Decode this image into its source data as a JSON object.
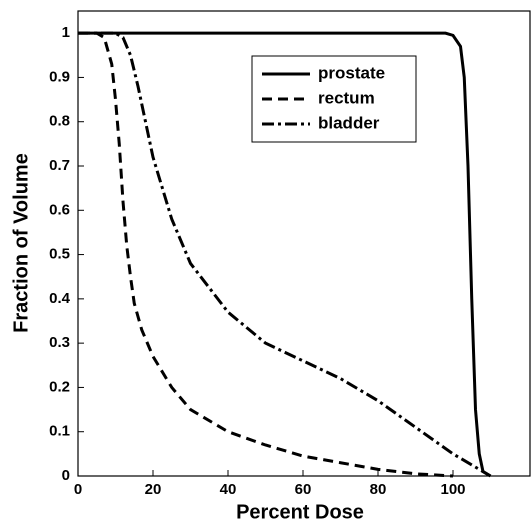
{
  "chart_data": {
    "type": "line",
    "x_label": "Percent Dose",
    "y_label": "Fraction of Volume",
    "xlim": [
      0,
      120
    ],
    "ylim": [
      0,
      1.05
    ],
    "xticks": [
      0,
      20,
      40,
      60,
      80,
      100
    ],
    "yticks": [
      0,
      0.1,
      0.2,
      0.3,
      0.4,
      0.5,
      0.6,
      0.7,
      0.8,
      0.9,
      1
    ],
    "series": [
      {
        "name": "prostate",
        "color": "#000000",
        "dash": "solid",
        "x": [
          0,
          98,
          100,
          102,
          103,
          104,
          105,
          106,
          107,
          108,
          110
        ],
        "values": [
          1,
          1,
          0.995,
          0.97,
          0.9,
          0.7,
          0.4,
          0.15,
          0.05,
          0.01,
          0
        ]
      },
      {
        "name": "rectum",
        "color": "#000000",
        "dash": "dashed",
        "x": [
          0,
          5,
          7,
          9,
          10,
          11,
          12,
          13,
          14,
          15,
          17,
          20,
          25,
          30,
          40,
          50,
          60,
          70,
          80,
          90,
          100
        ],
        "values": [
          1,
          1,
          0.99,
          0.93,
          0.85,
          0.75,
          0.62,
          0.52,
          0.45,
          0.39,
          0.33,
          0.27,
          0.2,
          0.15,
          0.1,
          0.07,
          0.045,
          0.03,
          0.015,
          0.005,
          0
        ]
      },
      {
        "name": "bladder",
        "color": "#000000",
        "dash": "dashdot",
        "x": [
          0,
          10,
          12,
          14,
          16,
          18,
          20,
          25,
          30,
          40,
          50,
          60,
          70,
          80,
          90,
          100,
          106,
          110
        ],
        "values": [
          1,
          1,
          0.99,
          0.95,
          0.88,
          0.8,
          0.72,
          0.58,
          0.48,
          0.37,
          0.3,
          0.26,
          0.22,
          0.17,
          0.11,
          0.05,
          0.02,
          0
        ]
      }
    ]
  }
}
